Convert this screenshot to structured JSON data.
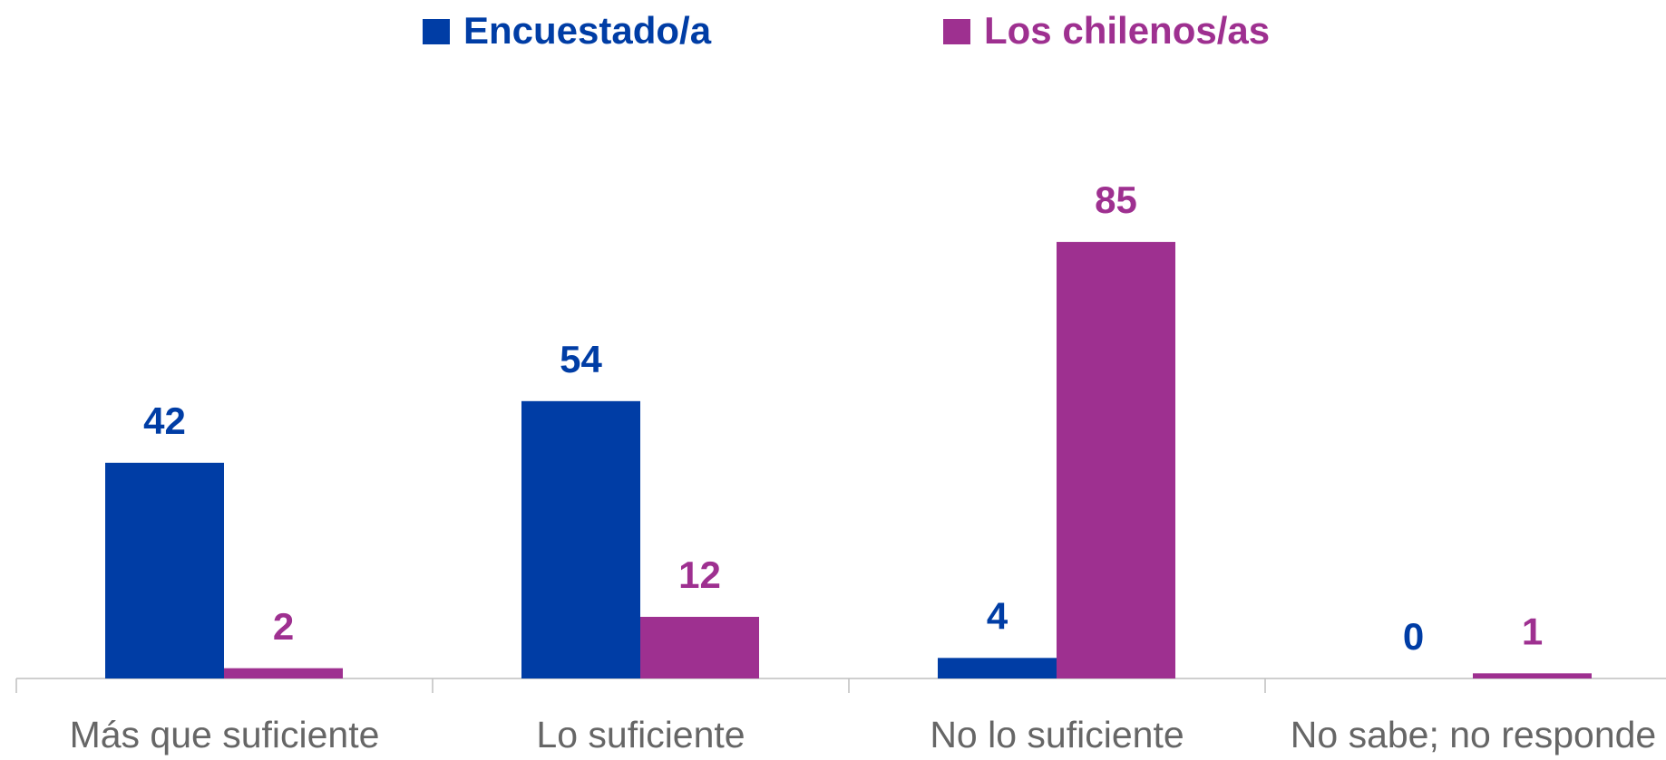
{
  "chart_data": {
    "type": "bar",
    "categories": [
      "Más que suficiente",
      "Lo suficiente",
      "No lo suficiente",
      "No sabe; no responde"
    ],
    "series": [
      {
        "name": "Encuestado/a",
        "color": "#003da5",
        "values": [
          42,
          54,
          4,
          0
        ]
      },
      {
        "name": "Los chilenos/as",
        "color": "#9e3090",
        "values": [
          2,
          12,
          85,
          1
        ]
      }
    ],
    "ylim": [
      0,
      100
    ],
    "legend": "top"
  }
}
